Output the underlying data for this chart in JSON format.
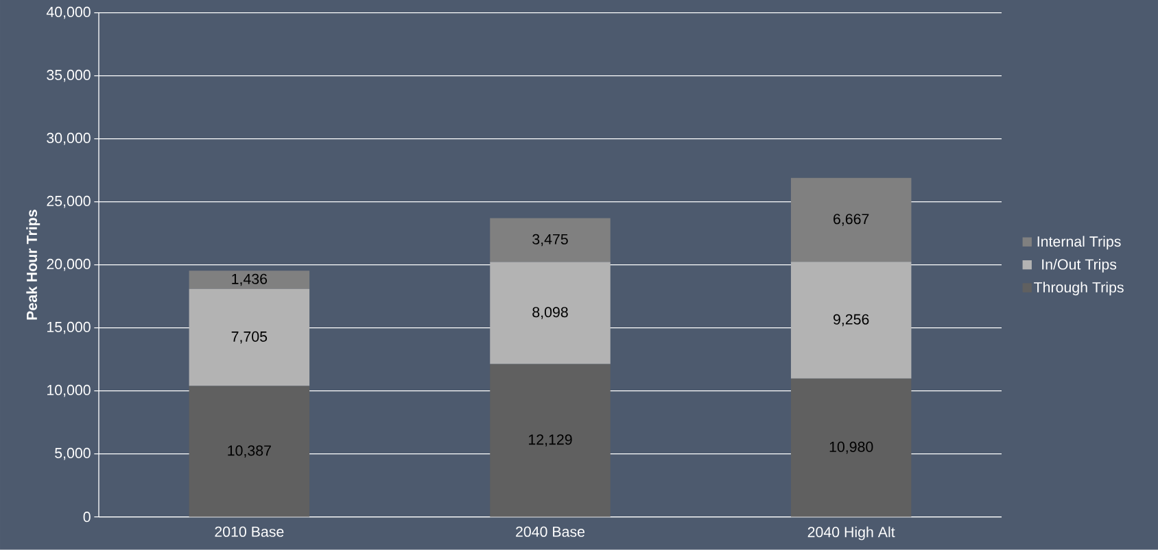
{
  "chart_data": {
    "type": "bar",
    "stacked": true,
    "ylabel": "Peak Hour Trips",
    "categories": [
      "2010 Base",
      "2040 Base",
      "2040 High Alt"
    ],
    "series": [
      {
        "name": "Through Trips",
        "color": "#606060",
        "values": [
          10387,
          12129,
          10980
        ],
        "value_labels": [
          "10,387",
          "12,129",
          "10,980"
        ]
      },
      {
        "name": "In/Out Trips",
        "color": "#b3b3b3",
        "values": [
          7705,
          8098,
          9256
        ],
        "value_labels": [
          "7,705",
          "8,098",
          "9,256"
        ]
      },
      {
        "name": "Internal Trips",
        "color": "#808080",
        "values": [
          1436,
          3475,
          6667
        ],
        "value_labels": [
          "1,436",
          "3,475",
          "6,667"
        ]
      }
    ],
    "ylim": [
      0,
      40000
    ],
    "yticks": [
      0,
      {
        "value": 5000,
        "label": "5,000"
      },
      {
        "value": 10000,
        "label": "10,000"
      },
      {
        "value": 15000,
        "label": "15,000"
      },
      {
        "value": 20000,
        "label": "20,000"
      },
      {
        "value": 25000,
        "label": "25,000"
      },
      {
        "value": 30000,
        "label": "30,000"
      },
      {
        "value": 35000,
        "label": "35,000"
      },
      {
        "value": 40000,
        "label": "40,000"
      }
    ],
    "grid": "y",
    "legend": "right"
  }
}
